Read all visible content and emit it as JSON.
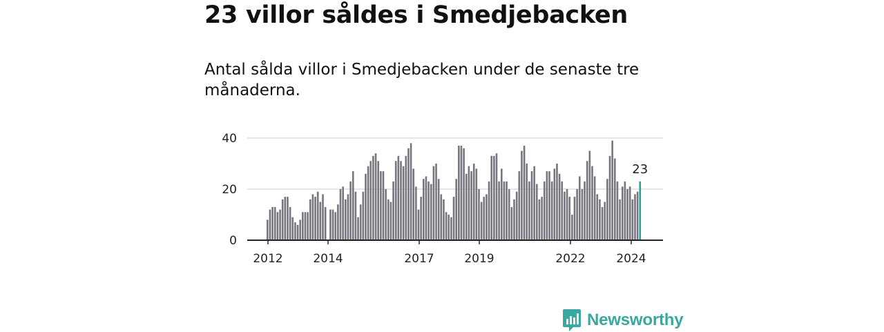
{
  "title": "23 villor såldes i Smedjebacken",
  "subtitle": "Antal sålda villor i Smedjebacken under de senaste tre månaderna.",
  "brand": "Newsworthy",
  "colors": {
    "bar": "#76767e",
    "highlight": "#1ea59a",
    "grid": "#dddddd",
    "axis": "#222222",
    "brand": "#3aa8a0"
  },
  "chart_data": {
    "type": "bar",
    "title": "",
    "xlabel": "",
    "ylabel": "",
    "ylim": [
      0,
      40
    ],
    "yticks": [
      0,
      20,
      40
    ],
    "xtick_labels": [
      "2012",
      "2014",
      "2017",
      "2019",
      "2022",
      "2024"
    ],
    "highlight_label": "23",
    "grid": true,
    "series": [
      {
        "values": [
          8,
          12,
          13,
          13,
          11,
          12,
          16,
          17,
          17,
          13,
          9,
          7,
          6,
          8,
          11,
          11,
          11,
          16,
          18,
          17,
          19,
          15,
          18,
          13,
          0,
          12,
          12,
          11,
          14,
          20,
          21,
          16,
          18,
          23,
          27,
          19,
          9,
          14,
          19,
          26,
          29,
          31,
          33,
          34,
          31,
          27,
          27,
          20,
          16,
          15,
          23,
          31,
          33,
          31,
          29,
          33,
          36,
          38,
          28,
          21,
          12,
          17,
          24,
          25,
          23,
          22,
          29,
          30,
          24,
          18,
          16,
          11,
          10,
          9,
          17,
          24,
          37,
          37,
          36,
          26,
          29,
          27,
          30,
          28,
          20,
          15,
          17,
          18,
          23,
          33,
          33,
          34,
          23,
          28,
          23,
          23,
          20,
          13,
          16,
          19,
          27,
          35,
          37,
          30,
          23,
          27,
          29,
          22,
          16,
          17,
          23,
          27,
          27,
          23,
          28,
          30,
          26,
          23,
          19,
          20,
          17,
          10,
          17,
          20,
          25,
          20,
          23,
          31,
          35,
          29,
          25,
          18,
          16,
          13,
          15,
          24,
          33,
          39,
          32,
          23,
          16,
          21,
          23,
          20,
          21,
          16,
          18,
          19,
          23
        ]
      }
    ]
  }
}
